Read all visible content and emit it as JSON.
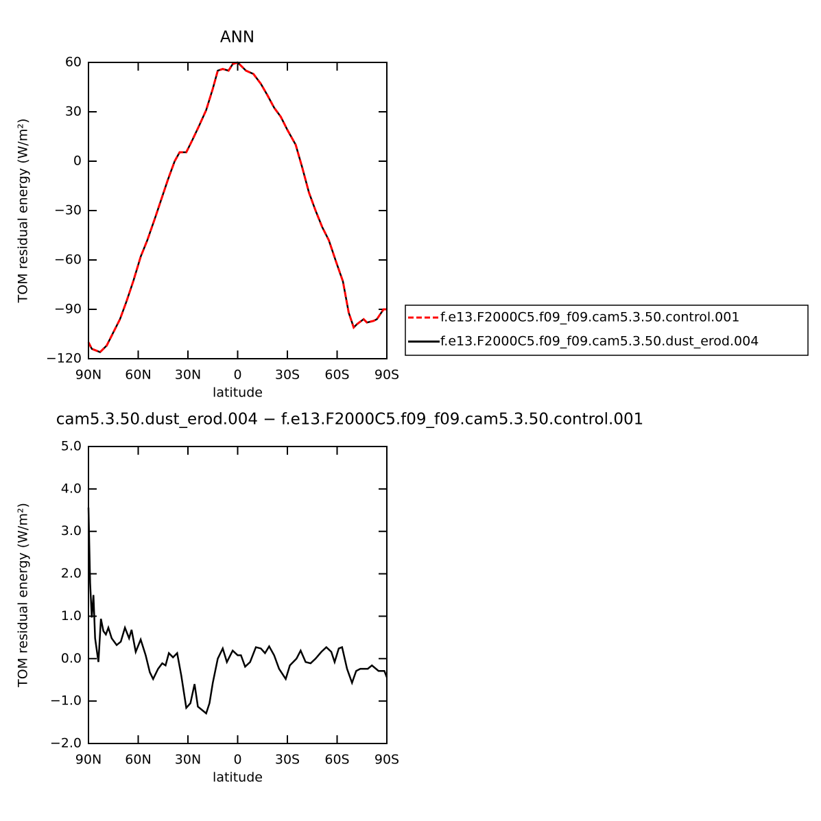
{
  "chart_data": [
    {
      "type": "line",
      "title": "ANN",
      "x_label": "latitude",
      "y_label": "TOM residual energy (W/m²)",
      "xlim": [
        90,
        -90
      ],
      "ylim": [
        -120,
        60
      ],
      "xticks": [
        {
          "value": 90,
          "label": "90N"
        },
        {
          "value": 60,
          "label": "60N"
        },
        {
          "value": 30,
          "label": "30N"
        },
        0,
        {
          "value": -30,
          "label": "30S"
        },
        {
          "value": -60,
          "label": "60S"
        },
        {
          "value": -90,
          "label": "90S"
        }
      ],
      "yticks": [
        {
          "value": -120,
          "label": "−120"
        },
        {
          "value": -90,
          "label": "−90"
        },
        {
          "value": -60,
          "label": "−60"
        },
        {
          "value": -30,
          "label": "−30"
        },
        0,
        30,
        60
      ],
      "x": [
        90,
        88,
        83,
        79,
        75,
        71,
        67,
        63,
        58.5,
        54.5,
        50,
        46,
        42,
        38,
        35,
        31,
        27.5,
        23.5,
        19,
        15,
        12,
        9,
        5.5,
        3,
        0,
        -2,
        -5,
        -9.5,
        -14,
        -18,
        -22,
        -26,
        -30,
        -35,
        -39,
        -43,
        -47,
        -51,
        -55,
        -59,
        -63.5,
        -67,
        -70,
        -72,
        -76,
        -78,
        -82,
        -84,
        -88,
        -90
      ],
      "series": [
        {
          "name": "f.e13.F2000C5.f09_f09.cam5.3.50.control.001",
          "color": "#ff0000",
          "dash": true,
          "values": [
            -110,
            -114,
            -116,
            -112,
            -104,
            -96,
            -85,
            -73,
            -58,
            -48,
            -35,
            -23,
            -11,
            0,
            5.4,
            5.4,
            12.5,
            21,
            31,
            44,
            55,
            56,
            55,
            59,
            60,
            58,
            55,
            53,
            47,
            40,
            32.5,
            27,
            19,
            10,
            -4,
            -19,
            -30,
            -40,
            -48,
            -60,
            -73,
            -92,
            -101,
            -99,
            -96,
            -98,
            -97,
            -96,
            -90,
            -90
          ]
        },
        {
          "name": "f.e13.F2000C5.f09_f09.cam5.3.50.dust_erod.004",
          "color": "#000000",
          "dash": false,
          "values": [
            -110,
            -114,
            -116,
            -112,
            -104,
            -96,
            -85,
            -73,
            -58,
            -48,
            -35,
            -23,
            -11,
            0,
            5.4,
            5.4,
            12.5,
            21,
            31,
            44,
            55,
            56,
            55,
            59,
            60,
            58,
            55,
            53,
            47,
            40,
            32.5,
            27,
            19,
            10,
            -4,
            -19,
            -30,
            -40,
            -48,
            -60,
            -73,
            -92,
            -101,
            -99,
            -96,
            -98,
            -97,
            -96,
            -90,
            -90
          ]
        }
      ]
    },
    {
      "type": "line",
      "title": "cam5.3.50.dust_erod.004 − f.e13.F2000C5.f09_f09.cam5.3.50.control.001",
      "x_label": "latitude",
      "y_label": "TOM residual energy (W/m²)",
      "xlim": [
        90,
        -90
      ],
      "ylim": [
        -2,
        5
      ],
      "xticks": [
        {
          "value": 90,
          "label": "90N"
        },
        {
          "value": 60,
          "label": "60N"
        },
        {
          "value": 30,
          "label": "30N"
        },
        0,
        {
          "value": -30,
          "label": "30S"
        },
        {
          "value": -60,
          "label": "60S"
        },
        {
          "value": -90,
          "label": "90S"
        }
      ],
      "yticks": [
        {
          "value": -2,
          "label": "−2.0"
        },
        {
          "value": -1,
          "label": "−1.0"
        },
        {
          "value": 0,
          "label": "0.0"
        },
        {
          "value": 1,
          "label": "1.0"
        },
        {
          "value": 2,
          "label": "2.0"
        },
        {
          "value": 3,
          "label": "3.0"
        },
        {
          "value": 4,
          "label": "4.0"
        },
        {
          "value": 5,
          "label": "5.0"
        }
      ],
      "x": [
        90,
        89,
        88,
        87,
        86,
        84,
        82.5,
        81,
        79.5,
        78,
        76,
        73,
        70.5,
        68,
        65.5,
        64,
        61.5,
        58.5,
        55.5,
        53,
        51,
        48,
        45.5,
        43.5,
        41.5,
        39,
        36.5,
        34,
        31,
        28.5,
        26,
        24,
        21.5,
        19,
        17,
        15,
        12,
        9,
        6.5,
        3,
        0,
        -2,
        -4.5,
        -7.5,
        -11,
        -14,
        -16.5,
        -19,
        -22,
        -25,
        -29,
        -31.5,
        -35.5,
        -38,
        -41,
        -44,
        -47,
        -50.5,
        -53.5,
        -56.5,
        -58.5,
        -61,
        -63,
        -66,
        -69,
        -71.5,
        -74,
        -78.5,
        -81,
        -85,
        -88.5,
        -90
      ],
      "series": [
        {
          "color": "#000000",
          "dash": false,
          "values": [
            3.56,
            1.78,
            0.97,
            1.5,
            0.48,
            -0.08,
            0.94,
            0.65,
            0.57,
            0.73,
            0.48,
            0.32,
            0.4,
            0.73,
            0.48,
            0.68,
            0.16,
            0.45,
            0.08,
            -0.32,
            -0.48,
            -0.24,
            -0.11,
            -0.16,
            0.13,
            0.03,
            0.13,
            -0.4,
            -1.16,
            -1.05,
            -0.6,
            -1.13,
            -1.21,
            -1.29,
            -1.05,
            -0.57,
            0,
            0.24,
            -0.08,
            0.19,
            0.08,
            0.08,
            -0.19,
            -0.08,
            0.27,
            0.24,
            0.13,
            0.29,
            0.08,
            -0.24,
            -0.48,
            -0.16,
            0,
            0.19,
            -0.08,
            -0.11,
            0,
            0.16,
            0.27,
            0.16,
            -0.08,
            0.24,
            0.27,
            -0.24,
            -0.57,
            -0.29,
            -0.24,
            -0.24,
            -0.16,
            -0.29,
            -0.29,
            -0.44
          ]
        }
      ]
    }
  ]
}
